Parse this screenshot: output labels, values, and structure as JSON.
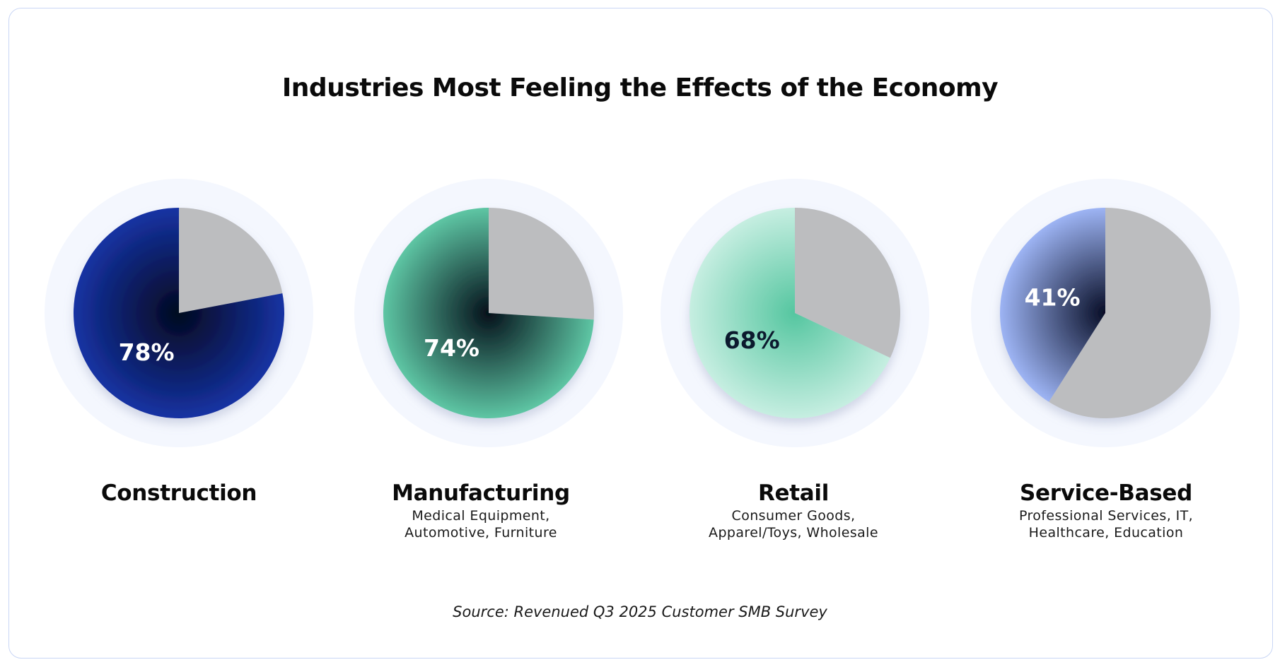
{
  "chart_data": {
    "type": "pie",
    "title": "Industries Most Feeling the Effects of the Economy",
    "source": "Source: Revenued Q3 2025 Customer SMB Survey",
    "series": [
      {
        "name": "Construction",
        "value": 78,
        "label": "78%",
        "subtitle": [],
        "color_outer": "#1533a3",
        "color_center": "#03081f",
        "label_color": "#ffffff",
        "remainder_color": "#bcbdbf"
      },
      {
        "name": "Manufacturing",
        "value": 74,
        "label": "74%",
        "subtitle": [
          "Medical Equipment,",
          "Automotive, Furniture"
        ],
        "color_outer": "#5ec6a4",
        "color_center": "#04101a",
        "label_color": "#ffffff",
        "remainder_color": "#bcbdbf"
      },
      {
        "name": "Retail",
        "value": 68,
        "label": "68%",
        "subtitle": [
          "Consumer Goods,",
          "Apparel/Toys, Wholesale"
        ],
        "color_outer": "#c6eee1",
        "color_center": "#55c6a0",
        "label_color": "#0c1a2e",
        "remainder_color": "#bcbdbf"
      },
      {
        "name": "Service-Based",
        "value": 41,
        "label": "41%",
        "subtitle": [
          "Professional Services, IT,",
          "Healthcare, Education"
        ],
        "color_outer": "#9db4f4",
        "color_center": "#070d26",
        "label_color": "#ffffff",
        "remainder_color": "#bcbdbf"
      }
    ]
  }
}
